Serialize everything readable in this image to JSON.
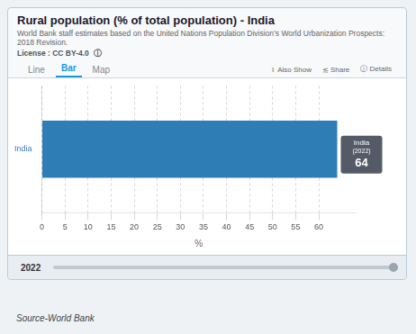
{
  "chart_data": {
    "type": "bar",
    "orientation": "horizontal",
    "title": "Rural population (% of total population) - India",
    "subtitle": "World Bank staff estimates based on the United Nations Population Division’s World Urbanization Prospects: 2018 Revision.",
    "annotations": [
      "License : CC BY-4.0  ⓘ",
      "Line",
      "Bar",
      "Map",
      "I  Also Show",
      "≲ Share",
      "ⓘ Details",
      "2022",
      "(2022)",
      "Source-World Bank"
    ],
    "categories": [
      "India"
    ],
    "values": [
      64
    ],
    "color": "#2e7db5",
    "xlabel": "%",
    "xlim": [
      0,
      68
    ],
    "xticks": [
      0,
      5,
      10,
      15,
      20,
      25,
      30,
      35,
      40,
      45,
      50,
      55,
      60
    ],
    "grid": true,
    "data_labels": true
  }
}
